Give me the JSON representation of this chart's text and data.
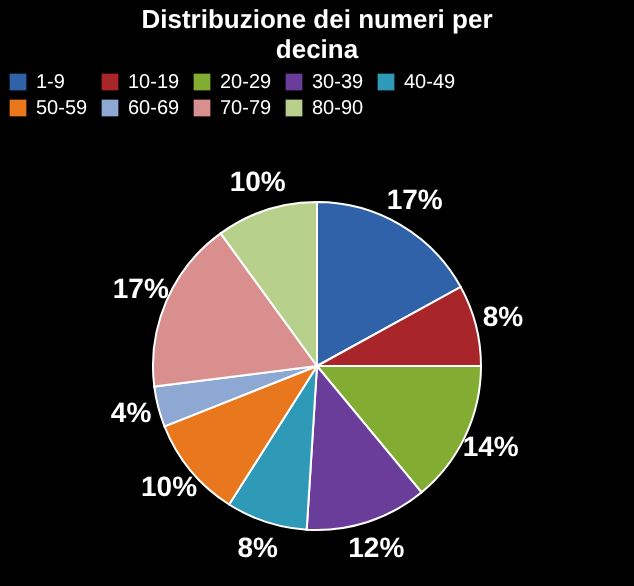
{
  "chart_data": {
    "type": "pie",
    "title": "Distribuzione  dei numeri per decina",
    "categories": [
      "1-9",
      "10-19",
      "20-29",
      "30-39",
      "40-49",
      "50-59",
      "60-69",
      "70-79",
      "80-90"
    ],
    "values": [
      17,
      8,
      14,
      12,
      8,
      10,
      4,
      17,
      10
    ],
    "value_labels": [
      "17%",
      "8%",
      "14%",
      "12%",
      "8%",
      "10%",
      "4%",
      "17%",
      "10%"
    ],
    "colors": [
      "#2f62a8",
      "#a8262a",
      "#82ad32",
      "#6a3d9a",
      "#2f9ab8",
      "#e8771e",
      "#8ea8d4",
      "#d88f8e",
      "#b7d08c"
    ],
    "legend": "top"
  }
}
